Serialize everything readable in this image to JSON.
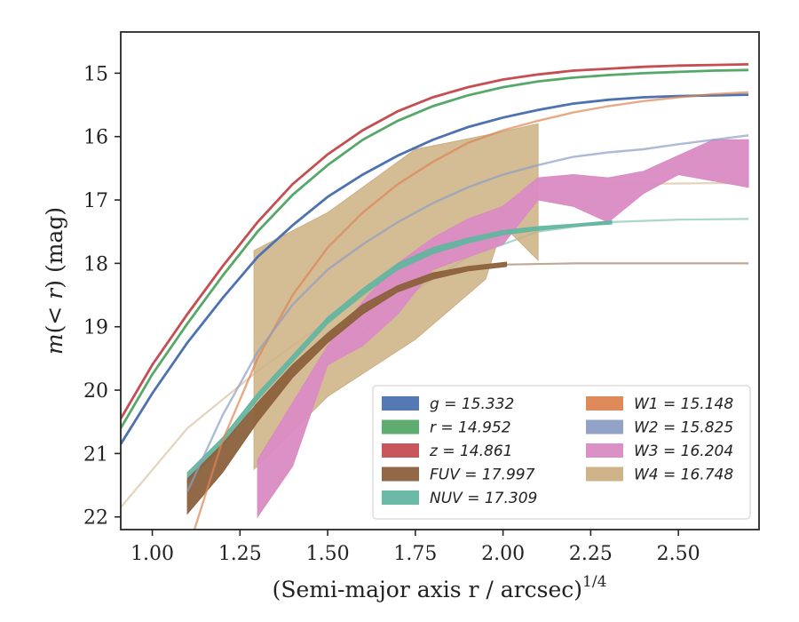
{
  "chart_data": {
    "type": "line",
    "xlabel": "(Semi-major axis r / arcsec)",
    "xlabel_exponent": "1/4",
    "ylabel_prefix": "m(",
    "ylabel_math": "< r",
    "ylabel_suffix": ") (mag)",
    "xlim": [
      0.91,
      2.73
    ],
    "ylim": [
      22.2,
      14.35
    ],
    "y_inverted": true,
    "xticks": [
      1.0,
      1.25,
      1.5,
      1.75,
      2.0,
      2.25,
      2.5
    ],
    "xtick_labels": [
      "1.00",
      "1.25",
      "1.50",
      "1.75",
      "2.00",
      "2.25",
      "2.50"
    ],
    "yticks": [
      15,
      16,
      17,
      18,
      19,
      20,
      21,
      22
    ],
    "ytick_labels": [
      "15",
      "16",
      "17",
      "18",
      "19",
      "20",
      "21",
      "22"
    ],
    "grid": false,
    "legend_placement": "lower-right",
    "series": [
      {
        "name": "g = 15.332",
        "band": "g",
        "total": 15.332,
        "color": "#4c72b0",
        "kind": "line",
        "points": [
          [
            0.91,
            20.85
          ],
          [
            1.0,
            20.05
          ],
          [
            1.1,
            19.25
          ],
          [
            1.2,
            18.55
          ],
          [
            1.3,
            17.9
          ],
          [
            1.4,
            17.4
          ],
          [
            1.5,
            16.95
          ],
          [
            1.6,
            16.6
          ],
          [
            1.7,
            16.3
          ],
          [
            1.8,
            16.05
          ],
          [
            1.9,
            15.85
          ],
          [
            2.0,
            15.7
          ],
          [
            2.1,
            15.58
          ],
          [
            2.2,
            15.48
          ],
          [
            2.3,
            15.42
          ],
          [
            2.4,
            15.38
          ],
          [
            2.5,
            15.36
          ],
          [
            2.6,
            15.35
          ],
          [
            2.7,
            15.34
          ]
        ]
      },
      {
        "name": "r = 14.952",
        "band": "r",
        "total": 14.952,
        "color": "#55a868",
        "kind": "line",
        "points": [
          [
            0.91,
            20.6
          ],
          [
            1.0,
            19.75
          ],
          [
            1.1,
            18.95
          ],
          [
            1.2,
            18.2
          ],
          [
            1.3,
            17.5
          ],
          [
            1.4,
            16.92
          ],
          [
            1.5,
            16.45
          ],
          [
            1.6,
            16.05
          ],
          [
            1.7,
            15.75
          ],
          [
            1.8,
            15.52
          ],
          [
            1.9,
            15.35
          ],
          [
            2.0,
            15.22
          ],
          [
            2.1,
            15.13
          ],
          [
            2.2,
            15.07
          ],
          [
            2.3,
            15.03
          ],
          [
            2.4,
            15.0
          ],
          [
            2.5,
            14.98
          ],
          [
            2.6,
            14.96
          ],
          [
            2.7,
            14.95
          ]
        ]
      },
      {
        "name": "z = 14.861",
        "band": "z",
        "total": 14.861,
        "color": "#c44e52",
        "kind": "line",
        "points": [
          [
            0.91,
            20.45
          ],
          [
            1.0,
            19.6
          ],
          [
            1.1,
            18.8
          ],
          [
            1.2,
            18.05
          ],
          [
            1.3,
            17.35
          ],
          [
            1.4,
            16.75
          ],
          [
            1.5,
            16.28
          ],
          [
            1.6,
            15.9
          ],
          [
            1.7,
            15.6
          ],
          [
            1.8,
            15.38
          ],
          [
            1.9,
            15.22
          ],
          [
            2.0,
            15.1
          ],
          [
            2.1,
            15.02
          ],
          [
            2.2,
            14.96
          ],
          [
            2.3,
            14.93
          ],
          [
            2.4,
            14.9
          ],
          [
            2.5,
            14.88
          ],
          [
            2.6,
            14.87
          ],
          [
            2.7,
            14.86
          ]
        ]
      },
      {
        "name": "W1 = 15.148",
        "band": "W1",
        "total": 15.148,
        "color": "#dd8452",
        "kind": "line",
        "points": [
          [
            1.12,
            22.2
          ],
          [
            1.2,
            20.8
          ],
          [
            1.3,
            19.5
          ],
          [
            1.4,
            18.5
          ],
          [
            1.5,
            17.75
          ],
          [
            1.6,
            17.2
          ],
          [
            1.7,
            16.75
          ],
          [
            1.8,
            16.4
          ],
          [
            1.9,
            16.1
          ],
          [
            2.0,
            15.9
          ],
          [
            2.1,
            15.75
          ],
          [
            2.2,
            15.62
          ],
          [
            2.3,
            15.52
          ],
          [
            2.4,
            15.44
          ],
          [
            2.5,
            15.38
          ],
          [
            2.6,
            15.33
          ],
          [
            2.7,
            15.3
          ]
        ]
      },
      {
        "name": "W2 = 15.825",
        "band": "W2",
        "total": 15.825,
        "color": "#8c9ec4",
        "kind": "line",
        "points": [
          [
            1.1,
            21.6
          ],
          [
            1.2,
            20.4
          ],
          [
            1.3,
            19.4
          ],
          [
            1.4,
            18.65
          ],
          [
            1.5,
            18.1
          ],
          [
            1.6,
            17.7
          ],
          [
            1.7,
            17.35
          ],
          [
            1.8,
            17.05
          ],
          [
            1.9,
            16.8
          ],
          [
            2.0,
            16.6
          ],
          [
            2.1,
            16.45
          ],
          [
            2.2,
            16.32
          ],
          [
            2.3,
            16.25
          ],
          [
            2.4,
            16.2
          ],
          [
            2.5,
            16.12
          ],
          [
            2.6,
            16.05
          ],
          [
            2.7,
            15.98
          ]
        ]
      },
      {
        "name": "W3 = 16.204",
        "band": "W3",
        "total": 16.204,
        "color": "#da8bc3",
        "kind": "band",
        "upper": [
          [
            1.3,
            21.1
          ],
          [
            1.4,
            20.2
          ],
          [
            1.5,
            19.3
          ],
          [
            1.6,
            18.6
          ],
          [
            1.7,
            18.0
          ],
          [
            1.8,
            17.6
          ],
          [
            1.9,
            17.3
          ],
          [
            2.0,
            17.1
          ],
          [
            2.1,
            16.65
          ],
          [
            2.2,
            16.6
          ],
          [
            2.3,
            16.65
          ],
          [
            2.4,
            16.55
          ],
          [
            2.5,
            16.3
          ],
          [
            2.6,
            16.05
          ],
          [
            2.7,
            16.05
          ]
        ],
        "lower": [
          [
            1.3,
            22.0
          ],
          [
            1.4,
            21.2
          ],
          [
            1.5,
            19.6
          ],
          [
            1.6,
            19.3
          ],
          [
            1.7,
            18.8
          ],
          [
            1.8,
            18.1
          ],
          [
            1.9,
            17.9
          ],
          [
            2.0,
            17.7
          ],
          [
            2.1,
            17.0
          ],
          [
            2.2,
            17.1
          ],
          [
            2.3,
            17.35
          ],
          [
            2.4,
            16.9
          ],
          [
            2.5,
            16.6
          ],
          [
            2.6,
            16.7
          ],
          [
            2.7,
            16.8
          ]
        ]
      },
      {
        "name": "W4 = 16.748",
        "band": "W4",
        "total": 16.748,
        "color": "#ccb083",
        "kind": "band",
        "upper": [
          [
            1.29,
            17.8
          ],
          [
            1.5,
            17.2
          ],
          [
            1.75,
            16.2
          ],
          [
            1.95,
            15.98
          ],
          [
            2.1,
            15.8
          ]
        ],
        "lower": [
          [
            1.29,
            21.25
          ],
          [
            1.5,
            20.1
          ],
          [
            1.75,
            19.2
          ],
          [
            1.95,
            18.25
          ],
          [
            2.0,
            17.4
          ],
          [
            2.1,
            17.95
          ]
        ],
        "trace": [
          [
            0.91,
            21.85
          ],
          [
            1.1,
            20.6
          ],
          [
            1.3,
            19.7
          ],
          [
            1.5,
            18.9
          ],
          [
            1.7,
            18.15
          ],
          [
            1.9,
            17.45
          ],
          [
            2.1,
            16.95
          ],
          [
            2.3,
            16.75
          ],
          [
            2.5,
            16.74
          ],
          [
            2.7,
            16.73
          ]
        ]
      },
      {
        "name": "FUV = 17.997",
        "band": "FUV",
        "total": 17.997,
        "color": "#8c613c",
        "kind": "band",
        "upper": [
          [
            1.1,
            21.4
          ],
          [
            1.2,
            20.85
          ],
          [
            1.3,
            20.2
          ],
          [
            1.4,
            19.6
          ],
          [
            1.5,
            19.1
          ],
          [
            1.6,
            18.65
          ],
          [
            1.7,
            18.35
          ],
          [
            1.8,
            18.15
          ],
          [
            1.9,
            18.05
          ],
          [
            2.01,
            17.98
          ]
        ],
        "lower": [
          [
            1.1,
            21.95
          ],
          [
            1.2,
            21.3
          ],
          [
            1.3,
            20.5
          ],
          [
            1.4,
            19.8
          ],
          [
            1.5,
            19.25
          ],
          [
            1.6,
            18.8
          ],
          [
            1.7,
            18.45
          ],
          [
            1.8,
            18.25
          ],
          [
            1.9,
            18.12
          ],
          [
            2.01,
            18.05
          ]
        ],
        "trace": [
          [
            2.0,
            18.02
          ],
          [
            2.2,
            18.0
          ],
          [
            2.4,
            18.0
          ],
          [
            2.7,
            18.0
          ]
        ]
      },
      {
        "name": "NUV = 17.309",
        "band": "NUV",
        "total": 17.309,
        "color": "#64b5a0",
        "kind": "band",
        "upper": [
          [
            1.1,
            21.3
          ],
          [
            1.2,
            20.75
          ],
          [
            1.3,
            20.05
          ],
          [
            1.4,
            19.45
          ],
          [
            1.5,
            18.85
          ],
          [
            1.6,
            18.4
          ],
          [
            1.7,
            18.0
          ],
          [
            1.8,
            17.75
          ],
          [
            1.9,
            17.6
          ],
          [
            2.0,
            17.48
          ],
          [
            2.1,
            17.42
          ],
          [
            2.2,
            17.38
          ],
          [
            2.31,
            17.33
          ]
        ],
        "lower": [
          [
            1.1,
            21.45
          ],
          [
            1.2,
            20.9
          ],
          [
            1.3,
            20.15
          ],
          [
            1.4,
            19.55
          ],
          [
            1.5,
            18.95
          ],
          [
            1.6,
            18.5
          ],
          [
            1.7,
            18.1
          ],
          [
            1.8,
            17.85
          ],
          [
            1.9,
            17.68
          ],
          [
            2.0,
            17.55
          ],
          [
            2.1,
            17.48
          ],
          [
            2.2,
            17.42
          ],
          [
            2.31,
            17.38
          ]
        ],
        "trace": [
          [
            1.5,
            19.6
          ],
          [
            1.7,
            18.6
          ],
          [
            1.9,
            17.9
          ],
          [
            2.1,
            17.5
          ],
          [
            2.3,
            17.35
          ],
          [
            2.5,
            17.31
          ],
          [
            2.7,
            17.3
          ]
        ]
      }
    ],
    "legend": {
      "left_column": [
        "g",
        "r",
        "z",
        "FUV",
        "NUV"
      ],
      "right_column": [
        "W1",
        "W2",
        "W3",
        "W4"
      ]
    }
  }
}
